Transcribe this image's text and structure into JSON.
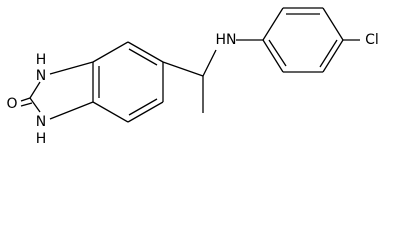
{
  "labels": {
    "amine": "HN",
    "chlorine": "Cl",
    "n1_h": "H",
    "n1": "N",
    "oxygen": "O",
    "n3": "N",
    "n3_h": "H"
  }
}
